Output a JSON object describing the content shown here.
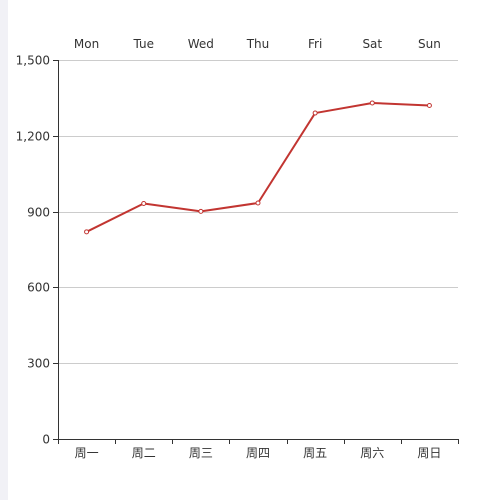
{
  "chart_data": {
    "type": "line",
    "categories_bottom": [
      "周一",
      "周二",
      "周三",
      "周四",
      "周五",
      "周六",
      "周日"
    ],
    "categories_top": [
      "Mon",
      "Tue",
      "Wed",
      "Thu",
      "Fri",
      "Sat",
      "Sun"
    ],
    "series": [
      {
        "values": [
          820,
          932,
          901,
          934,
          1290,
          1330,
          1320
        ],
        "color": "#c23531"
      }
    ],
    "yticks": [
      "0",
      "300",
      "600",
      "900",
      "1,200",
      "1,500"
    ],
    "ylim": [
      0,
      1500
    ],
    "grid": true
  }
}
